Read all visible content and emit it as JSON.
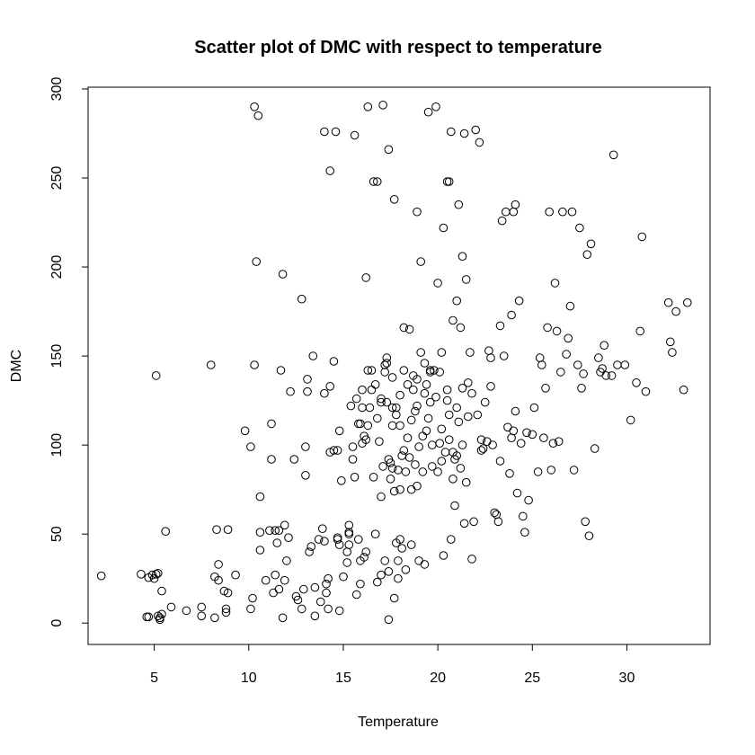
{
  "chart_data": {
    "type": "scatter",
    "title": "Scatter plot of DMC with respect to temperature",
    "xlabel": "Temperature",
    "ylabel": "DMC",
    "xlim": [
      1.5,
      34.4
    ],
    "ylim": [
      -12,
      301
    ],
    "xticks": [
      5,
      10,
      15,
      20,
      25,
      30
    ],
    "yticks": [
      0,
      50,
      100,
      150,
      200,
      250,
      300
    ],
    "grid": false,
    "points": [
      [
        2.2,
        26.5
      ],
      [
        4.3,
        27.5
      ],
      [
        4.7,
        25.5
      ],
      [
        4.6,
        3.5
      ],
      [
        4.7,
        3.5
      ],
      [
        4.9,
        27
      ],
      [
        5.0,
        25
      ],
      [
        5.1,
        27.5
      ],
      [
        5.2,
        28
      ],
      [
        5.1,
        139
      ],
      [
        5.2,
        4
      ],
      [
        5.3,
        3
      ],
      [
        5.3,
        2
      ],
      [
        5.4,
        5
      ],
      [
        5.4,
        18
      ],
      [
        5.6,
        51.5
      ],
      [
        5.9,
        9
      ],
      [
        6.7,
        7
      ],
      [
        7.5,
        9
      ],
      [
        7.5,
        4
      ],
      [
        8.0,
        145
      ],
      [
        8.2,
        26
      ],
      [
        8.2,
        3
      ],
      [
        8.3,
        52.5
      ],
      [
        8.4,
        33
      ],
      [
        8.4,
        24
      ],
      [
        8.7,
        18
      ],
      [
        8.8,
        6
      ],
      [
        8.8,
        8
      ],
      [
        8.9,
        52.5
      ],
      [
        8.9,
        17
      ],
      [
        9.3,
        27
      ],
      [
        9.8,
        108
      ],
      [
        10.1,
        99
      ],
      [
        10.1,
        8
      ],
      [
        10.2,
        14
      ],
      [
        10.3,
        290
      ],
      [
        10.3,
        145
      ],
      [
        10.4,
        203
      ],
      [
        10.5,
        285
      ],
      [
        10.6,
        71
      ],
      [
        10.6,
        41
      ],
      [
        10.6,
        51
      ],
      [
        10.9,
        24
      ],
      [
        11.1,
        52
      ],
      [
        11.2,
        112
      ],
      [
        11.2,
        92
      ],
      [
        11.3,
        17
      ],
      [
        11.4,
        27
      ],
      [
        11.4,
        52
      ],
      [
        11.5,
        45
      ],
      [
        11.6,
        52
      ],
      [
        11.6,
        19
      ],
      [
        11.7,
        142
      ],
      [
        11.8,
        196
      ],
      [
        11.8,
        3
      ],
      [
        11.9,
        24
      ],
      [
        11.9,
        55
      ],
      [
        12.0,
        35
      ],
      [
        12.1,
        48
      ],
      [
        12.2,
        130
      ],
      [
        12.4,
        92
      ],
      [
        12.5,
        15
      ],
      [
        12.6,
        13
      ],
      [
        12.8,
        182
      ],
      [
        12.9,
        19
      ],
      [
        12.8,
        8
      ],
      [
        13.0,
        99
      ],
      [
        13.0,
        83
      ],
      [
        13.1,
        137
      ],
      [
        13.1,
        130
      ],
      [
        13.2,
        40
      ],
      [
        13.3,
        43
      ],
      [
        13.4,
        150
      ],
      [
        13.5,
        4
      ],
      [
        13.5,
        20
      ],
      [
        13.7,
        47
      ],
      [
        13.8,
        12
      ],
      [
        13.9,
        53
      ],
      [
        14.0,
        276
      ],
      [
        14.0,
        129
      ],
      [
        14.0,
        46
      ],
      [
        14.1,
        17
      ],
      [
        14.1,
        22
      ],
      [
        14.2,
        25
      ],
      [
        14.2,
        8
      ],
      [
        14.3,
        133
      ],
      [
        14.3,
        96
      ],
      [
        14.3,
        254
      ],
      [
        14.5,
        97
      ],
      [
        14.5,
        147
      ],
      [
        14.6,
        276
      ],
      [
        14.7,
        97
      ],
      [
        14.7,
        48
      ],
      [
        14.7,
        47
      ],
      [
        14.8,
        108
      ],
      [
        14.8,
        7
      ],
      [
        14.8,
        44
      ],
      [
        14.9,
        80
      ],
      [
        15.0,
        26
      ],
      [
        15.2,
        34
      ],
      [
        15.2,
        40
      ],
      [
        15.3,
        55
      ],
      [
        15.3,
        51
      ],
      [
        15.3,
        44
      ],
      [
        15.3,
        50
      ],
      [
        15.4,
        122
      ],
      [
        15.5,
        99
      ],
      [
        15.5,
        92
      ],
      [
        15.6,
        82
      ],
      [
        15.6,
        274
      ],
      [
        15.7,
        16
      ],
      [
        15.7,
        126
      ],
      [
        15.8,
        112
      ],
      [
        15.8,
        47
      ],
      [
        15.9,
        22
      ],
      [
        15.9,
        35
      ],
      [
        15.9,
        112
      ],
      [
        16.0,
        131
      ],
      [
        16.0,
        121
      ],
      [
        16.0,
        101
      ],
      [
        16.1,
        105
      ],
      [
        16.1,
        37
      ],
      [
        16.2,
        103
      ],
      [
        16.2,
        194
      ],
      [
        16.2,
        40
      ],
      [
        16.3,
        290
      ],
      [
        16.3,
        111
      ],
      [
        16.3,
        142
      ],
      [
        16.4,
        121
      ],
      [
        16.5,
        142
      ],
      [
        16.5,
        131
      ],
      [
        16.6,
        82
      ],
      [
        16.6,
        248
      ],
      [
        16.7,
        50
      ],
      [
        16.7,
        134
      ],
      [
        16.8,
        248
      ],
      [
        16.8,
        115
      ],
      [
        16.8,
        23
      ],
      [
        16.9,
        102
      ],
      [
        17.0,
        71
      ],
      [
        17.0,
        124
      ],
      [
        17.0,
        27
      ],
      [
        17.0,
        126
      ],
      [
        17.1,
        291
      ],
      [
        17.1,
        88
      ],
      [
        17.2,
        141
      ],
      [
        17.2,
        145
      ],
      [
        17.2,
        35
      ],
      [
        17.3,
        149
      ],
      [
        17.3,
        146
      ],
      [
        17.3,
        124
      ],
      [
        17.4,
        29
      ],
      [
        17.4,
        92
      ],
      [
        17.4,
        266
      ],
      [
        17.4,
        2
      ],
      [
        17.5,
        90
      ],
      [
        17.5,
        81
      ],
      [
        17.6,
        121
      ],
      [
        17.6,
        87
      ],
      [
        17.6,
        111
      ],
      [
        17.6,
        138
      ],
      [
        17.7,
        238
      ],
      [
        17.7,
        74
      ],
      [
        17.7,
        14
      ],
      [
        17.8,
        117
      ],
      [
        17.8,
        121
      ],
      [
        17.8,
        45
      ],
      [
        17.9,
        35
      ],
      [
        17.9,
        25
      ],
      [
        17.9,
        86
      ],
      [
        18.0,
        75
      ],
      [
        18.0,
        128
      ],
      [
        18.0,
        111
      ],
      [
        18.0,
        47
      ],
      [
        18.1,
        94
      ],
      [
        18.1,
        42
      ],
      [
        18.2,
        97
      ],
      [
        18.2,
        142
      ],
      [
        18.2,
        166
      ],
      [
        18.3,
        30
      ],
      [
        18.3,
        85
      ],
      [
        18.4,
        104
      ],
      [
        18.4,
        134
      ],
      [
        18.5,
        93
      ],
      [
        18.5,
        165
      ],
      [
        18.6,
        75
      ],
      [
        18.6,
        44
      ],
      [
        18.6,
        114
      ],
      [
        18.7,
        139
      ],
      [
        18.7,
        131
      ],
      [
        18.8,
        89
      ],
      [
        18.8,
        119
      ],
      [
        18.9,
        231
      ],
      [
        18.9,
        137
      ],
      [
        18.9,
        77
      ],
      [
        18.9,
        122
      ],
      [
        19.0,
        35
      ],
      [
        19.0,
        99
      ],
      [
        19.1,
        203
      ],
      [
        19.1,
        152
      ],
      [
        19.2,
        85
      ],
      [
        19.2,
        105
      ],
      [
        19.3,
        33
      ],
      [
        19.3,
        146
      ],
      [
        19.3,
        129
      ],
      [
        19.4,
        108
      ],
      [
        19.4,
        134
      ],
      [
        19.5,
        287
      ],
      [
        19.5,
        115
      ],
      [
        19.6,
        141
      ],
      [
        19.6,
        142
      ],
      [
        19.6,
        124
      ],
      [
        19.7,
        88
      ],
      [
        19.7,
        100
      ],
      [
        19.8,
        142
      ],
      [
        19.9,
        290
      ],
      [
        19.9,
        127
      ],
      [
        20.0,
        191
      ],
      [
        20.0,
        85
      ],
      [
        20.1,
        141
      ],
      [
        20.1,
        101
      ],
      [
        20.2,
        91
      ],
      [
        20.2,
        109
      ],
      [
        20.2,
        152
      ],
      [
        20.3,
        38
      ],
      [
        20.3,
        222
      ],
      [
        20.4,
        96
      ],
      [
        20.5,
        125
      ],
      [
        20.5,
        248
      ],
      [
        20.5,
        131
      ],
      [
        20.6,
        117
      ],
      [
        20.6,
        103
      ],
      [
        20.6,
        248
      ],
      [
        20.7,
        276
      ],
      [
        20.7,
        47
      ],
      [
        20.8,
        170
      ],
      [
        20.8,
        81
      ],
      [
        20.8,
        96
      ],
      [
        20.9,
        92
      ],
      [
        20.9,
        66
      ],
      [
        21.0,
        121
      ],
      [
        21.0,
        181
      ],
      [
        21.0,
        94
      ],
      [
        21.1,
        235
      ],
      [
        21.1,
        113
      ],
      [
        21.2,
        87
      ],
      [
        21.2,
        166
      ],
      [
        21.3,
        206
      ],
      [
        21.3,
        132
      ],
      [
        21.3,
        100
      ],
      [
        21.4,
        56
      ],
      [
        21.4,
        275
      ],
      [
        21.5,
        193
      ],
      [
        21.5,
        79
      ],
      [
        21.6,
        116
      ],
      [
        21.6,
        135
      ],
      [
        21.7,
        152
      ],
      [
        21.8,
        129
      ],
      [
        21.8,
        36
      ],
      [
        21.9,
        57
      ],
      [
        22.0,
        277
      ],
      [
        22.1,
        117
      ],
      [
        22.2,
        270
      ],
      [
        22.3,
        103
      ],
      [
        22.3,
        97
      ],
      [
        22.4,
        98
      ],
      [
        22.5,
        124
      ],
      [
        22.6,
        102
      ],
      [
        22.7,
        153
      ],
      [
        22.8,
        149
      ],
      [
        22.8,
        133
      ],
      [
        22.9,
        100
      ],
      [
        23.0,
        62
      ],
      [
        23.1,
        61
      ],
      [
        23.2,
        57
      ],
      [
        23.3,
        91
      ],
      [
        23.3,
        167
      ],
      [
        23.4,
        226
      ],
      [
        23.5,
        150
      ],
      [
        23.6,
        231
      ],
      [
        23.7,
        110
      ],
      [
        23.8,
        84
      ],
      [
        23.9,
        173
      ],
      [
        23.9,
        104
      ],
      [
        24.0,
        231
      ],
      [
        24.0,
        108
      ],
      [
        24.1,
        235
      ],
      [
        24.1,
        119
      ],
      [
        24.2,
        73
      ],
      [
        24.3,
        181
      ],
      [
        24.4,
        101
      ],
      [
        24.5,
        60
      ],
      [
        24.6,
        51
      ],
      [
        24.7,
        107
      ],
      [
        24.8,
        69
      ],
      [
        25.0,
        106
      ],
      [
        25.1,
        121
      ],
      [
        25.3,
        85
      ],
      [
        25.4,
        149
      ],
      [
        25.5,
        145
      ],
      [
        25.6,
        104
      ],
      [
        25.7,
        132
      ],
      [
        25.8,
        166
      ],
      [
        25.9,
        231
      ],
      [
        26.0,
        86
      ],
      [
        26.1,
        101
      ],
      [
        26.2,
        191
      ],
      [
        26.3,
        164
      ],
      [
        26.4,
        102
      ],
      [
        26.5,
        141
      ],
      [
        26.6,
        231
      ],
      [
        26.8,
        151
      ],
      [
        26.9,
        160
      ],
      [
        27.0,
        178
      ],
      [
        27.1,
        231
      ],
      [
        27.2,
        86
      ],
      [
        27.4,
        145
      ],
      [
        27.5,
        222
      ],
      [
        27.6,
        132
      ],
      [
        27.7,
        140
      ],
      [
        27.8,
        57
      ],
      [
        27.9,
        207
      ],
      [
        28.0,
        49
      ],
      [
        28.1,
        213
      ],
      [
        28.3,
        98
      ],
      [
        28.5,
        149
      ],
      [
        28.6,
        141
      ],
      [
        28.7,
        143
      ],
      [
        28.8,
        156
      ],
      [
        28.9,
        139
      ],
      [
        29.2,
        139
      ],
      [
        29.3,
        263
      ],
      [
        29.5,
        145
      ],
      [
        29.9,
        145
      ],
      [
        30.2,
        114
      ],
      [
        30.5,
        135
      ],
      [
        30.7,
        164
      ],
      [
        30.8,
        217
      ],
      [
        31.0,
        130
      ],
      [
        32.2,
        180
      ],
      [
        32.3,
        158
      ],
      [
        32.4,
        152
      ],
      [
        32.6,
        175
      ],
      [
        33.0,
        131
      ],
      [
        33.2,
        180
      ]
    ]
  }
}
